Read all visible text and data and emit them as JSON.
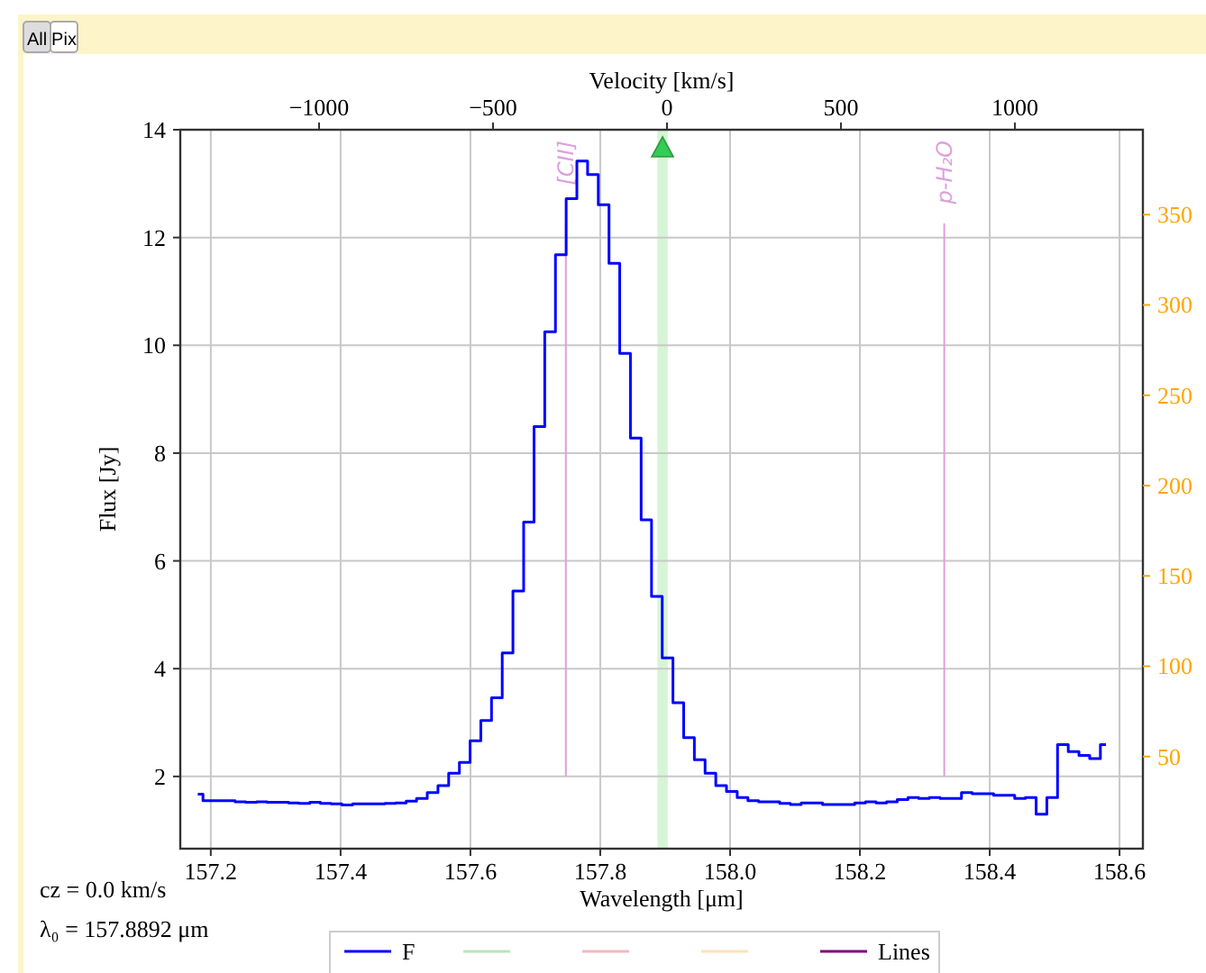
{
  "chart_data": {
    "type": "step",
    "xlabel": "Wavelength [μm]",
    "ylabel": "Flux [Jy]",
    "x2label": "Velocity [km/s]",
    "x": [
      157.18,
      157.196,
      157.213,
      157.229,
      157.246,
      157.262,
      157.279,
      157.295,
      157.312,
      157.328,
      157.344,
      157.361,
      157.377,
      157.394,
      157.41,
      157.427,
      157.443,
      157.46,
      157.476,
      157.493,
      157.509,
      157.525,
      157.542,
      157.558,
      157.575,
      157.591,
      157.608,
      157.624,
      157.641,
      157.657,
      157.674,
      157.69,
      157.706,
      157.723,
      157.739,
      157.756,
      157.772,
      157.789,
      157.805,
      157.822,
      157.838,
      157.855,
      157.871,
      157.887,
      157.904,
      157.92,
      157.937,
      157.953,
      157.97,
      157.986,
      158.003,
      158.019,
      158.036,
      158.052,
      158.068,
      158.085,
      158.101,
      158.118,
      158.134,
      158.151,
      158.167,
      158.184,
      158.2,
      158.217,
      158.233,
      158.249,
      158.266,
      158.282,
      158.299,
      158.315,
      158.332,
      158.348,
      158.365,
      158.381,
      158.398,
      158.414,
      158.43,
      158.447,
      158.463,
      158.48,
      158.496,
      158.513,
      158.529,
      158.546,
      158.562,
      158.579
    ],
    "series": [
      {
        "name": "F",
        "color": "#0000ff",
        "values": [
          1.67,
          1.55,
          1.55,
          1.55,
          1.53,
          1.52,
          1.53,
          1.52,
          1.52,
          1.51,
          1.5,
          1.52,
          1.5,
          1.49,
          1.47,
          1.49,
          1.49,
          1.49,
          1.5,
          1.51,
          1.54,
          1.59,
          1.7,
          1.83,
          2.06,
          2.26,
          2.66,
          3.04,
          3.46,
          4.29,
          5.44,
          6.72,
          8.49,
          10.25,
          11.68,
          12.72,
          13.42,
          13.17,
          12.61,
          11.52,
          9.85,
          8.28,
          6.76,
          5.34,
          4.2,
          3.37,
          2.72,
          2.31,
          2.06,
          1.83,
          1.72,
          1.61,
          1.55,
          1.53,
          1.53,
          1.5,
          1.48,
          1.51,
          1.51,
          1.48,
          1.48,
          1.48,
          1.51,
          1.53,
          1.51,
          1.53,
          1.57,
          1.61,
          1.59,
          1.61,
          1.59,
          1.59,
          1.7,
          1.68,
          1.68,
          1.65,
          1.65,
          1.59,
          1.61,
          1.3,
          1.61,
          2.59,
          2.46,
          2.39,
          2.33,
          2.59
        ]
      },
      {
        "color": "#b9e6b9",
        "values": [
          null,
          null,
          null,
          null,
          null,
          null,
          null,
          null,
          null,
          null,
          null,
          null,
          null,
          null,
          null,
          null,
          null,
          null,
          null,
          null,
          null,
          null,
          null,
          null,
          null,
          null,
          null,
          null,
          null,
          null,
          null,
          null,
          null,
          null,
          null,
          null,
          null,
          null,
          null,
          null,
          null,
          null,
          null,
          null,
          null,
          null,
          null,
          null,
          null,
          null,
          null,
          null,
          null,
          null,
          null,
          null,
          null,
          null,
          null,
          null,
          null,
          null,
          null,
          null,
          null,
          null,
          null,
          null,
          null,
          null,
          null,
          null,
          null,
          null,
          null,
          null,
          null,
          null,
          null,
          null,
          null,
          null,
          null,
          null,
          null,
          null
        ]
      },
      {
        "color": "#f4b8c0",
        "values": [
          null,
          null,
          null,
          null,
          null,
          null,
          null,
          null,
          null,
          null,
          null,
          null,
          null,
          null,
          null,
          null,
          null,
          null,
          null,
          null,
          null,
          null,
          null,
          null,
          null,
          null,
          null,
          null,
          null,
          null,
          null,
          null,
          null,
          null,
          null,
          null,
          null,
          null,
          null,
          null,
          null,
          null,
          null,
          null,
          null,
          null,
          null,
          null,
          null,
          null,
          null,
          null,
          null,
          null,
          null,
          null,
          null,
          null,
          null,
          null,
          null,
          null,
          null,
          null,
          null,
          null,
          null,
          null,
          null,
          null,
          null,
          null,
          null,
          null,
          null,
          null,
          null,
          null,
          null,
          null,
          null,
          null,
          null,
          null,
          null,
          null
        ]
      },
      {
        "color": "#fbe3b4",
        "values": [
          null,
          null,
          null,
          null,
          null,
          null,
          null,
          null,
          null,
          null,
          null,
          null,
          null,
          null,
          null,
          null,
          null,
          null,
          null,
          null,
          null,
          null,
          null,
          null,
          null,
          null,
          null,
          null,
          null,
          null,
          null,
          null,
          null,
          null,
          null,
          null,
          null,
          null,
          null,
          null,
          null,
          null,
          null,
          null,
          null,
          null,
          null,
          null,
          null,
          null,
          null,
          null,
          null,
          null,
          null,
          null,
          null,
          null,
          null,
          null,
          null,
          null,
          null,
          null,
          null,
          null,
          null,
          null,
          null,
          null,
          null,
          null,
          null,
          null,
          null,
          null,
          null,
          null,
          null,
          null,
          null,
          null,
          null,
          null,
          null,
          null
        ]
      },
      {
        "name": "Lines",
        "color": "#800080",
        "values": [
          null,
          null,
          null,
          null,
          null,
          null,
          null,
          null,
          null,
          null,
          null,
          null,
          null,
          null,
          null,
          null,
          null,
          null,
          null,
          null,
          null,
          null,
          null,
          null,
          null,
          null,
          null,
          null,
          null,
          null,
          null,
          null,
          null,
          null,
          null,
          null,
          null,
          null,
          null,
          null,
          null,
          null,
          null,
          null,
          null,
          null,
          null,
          null,
          null,
          null,
          null,
          null,
          null,
          null,
          null,
          null,
          null,
          null,
          null,
          null,
          null,
          null,
          null,
          null,
          null,
          null,
          null,
          null,
          null,
          null,
          null,
          null,
          null,
          null,
          null,
          null,
          null,
          null,
          null,
          null,
          null,
          null,
          null,
          null,
          null,
          null
        ]
      }
    ],
    "xlim": [
      157.153,
      158.636
    ],
    "ylim": [
      0.66,
      14
    ],
    "xticks": [
      157.2,
      157.4,
      157.6,
      157.8,
      {
        "value": 158.0,
        "label": "158.0"
      },
      158.2,
      158.4,
      158.6
    ],
    "yticks": [
      2,
      4,
      6,
      8,
      10,
      12,
      14
    ],
    "x2lim": [
      -1399,
      1368
    ],
    "x2ticks": [
      {
        "value": -1000,
        "label": "−1000"
      },
      {
        "value": -500,
        "label": "−500"
      },
      0,
      500,
      1000
    ],
    "y2lim": [
      -1,
      397
    ],
    "y2ticks": [
      50,
      100,
      150,
      200,
      250,
      300,
      350
    ],
    "grid": true,
    "legend": "bottom",
    "ref_lines": [
      {
        "axis": "x",
        "value": 157.747,
        "label": "[CII]",
        "color": "#dda0dd"
      },
      {
        "axis": "x",
        "value": 158.33,
        "label": "p-H₂O",
        "color": "#dda0dd"
      }
    ],
    "bands": [
      {
        "axis": "x",
        "from": 157.888,
        "to": 157.904,
        "color": "#d6f5d6"
      }
    ],
    "annotations": [
      "All",
      "Pix",
      "cz = 0.0 km/s",
      "λ₀ = 157.8892 μm"
    ]
  }
}
